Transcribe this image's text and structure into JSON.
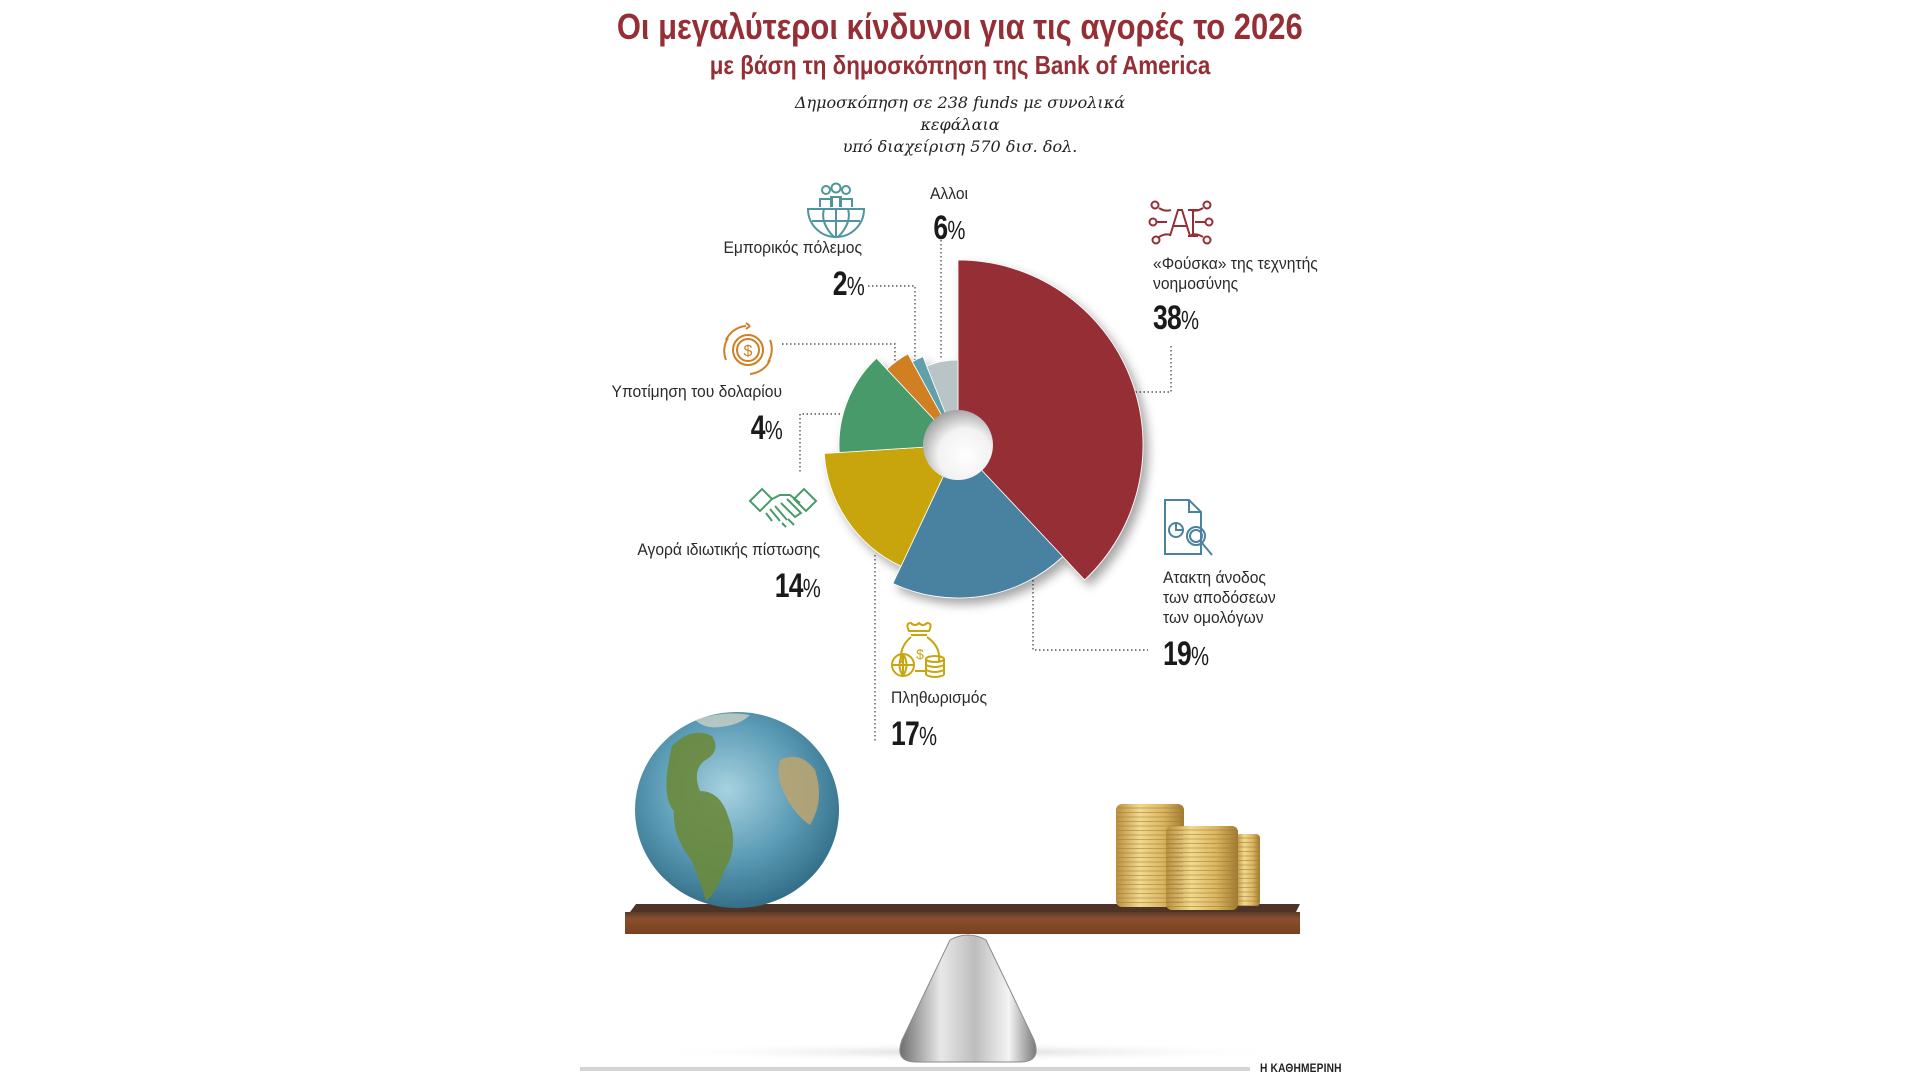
{
  "header": {
    "title": "Οι μεγαλύτεροι κίνδυνοι για τις αγορές το 2026",
    "subtitle": "με βάση τη δημοσκόπηση της Bank of America",
    "note_line1": "Δημοσκόπηση σε 238 funds με συνολικά κεφάλαια",
    "note_line2": "υπό διαχείριση  570 δισ. δολ."
  },
  "labels": {
    "others": {
      "name": "Αλλοι",
      "value": "6",
      "icon": "none"
    },
    "trade_war": {
      "name": "Εμπορικός πόλεμος",
      "value": "2",
      "icon": "globe-people-icon"
    },
    "ai_bubble": {
      "line1": "«Φούσκα» της τεχνητής",
      "line2": "νοημοσύνης",
      "value": "38",
      "icon": "ai-chip-icon"
    },
    "dollar": {
      "name": "Υποτίμηση του δολαρίου",
      "value": "4",
      "icon": "dollar-cycle-icon"
    },
    "private_credit": {
      "name": "Αγορά ιδιωτικής πίστωσης",
      "value": "14",
      "icon": "handshake-icon"
    },
    "bond_yields": {
      "line1": "Ατακτη άνοδος",
      "line2": "των αποδόσεων",
      "line3": "των ομολόγων",
      "value": "19",
      "icon": "document-search-icon"
    },
    "inflation": {
      "name": "Πληθωρισμός",
      "value": "17",
      "icon": "money-bag-icon"
    },
    "percent_sign": "%"
  },
  "footer": {
    "brand": "Η ΚΑΘΗΜΕΡΙΝΗ"
  },
  "chart_data": {
    "type": "pie",
    "variant": "polar-area donut (variable radius slices)",
    "title": "Οι μεγαλύτεροι κίνδυνοι για τις αγορές το 2026",
    "subtitle": "με βάση τη δημοσκόπηση της Bank of America",
    "categories": [
      "«Φούσκα» της τεχνητής νοημοσύνης",
      "Ατακτη άνοδος των αποδόσεων των ομολόγων",
      "Πληθωρισμός",
      "Αγορά ιδιωτικής πίστωσης",
      "Υποτίμηση του δολαρίου",
      "Εμπορικός πόλεμος",
      "Αλλοι"
    ],
    "values": [
      38,
      19,
      17,
      14,
      4,
      2,
      6
    ],
    "unit": "%",
    "colors": [
      "#962e36",
      "#4a82a0",
      "#c9a50e",
      "#4a9a6a",
      "#d07f22",
      "#5fa0aa",
      "#b8c4c6"
    ],
    "radii": [
      185,
      153,
      134,
      119,
      104,
      95,
      85
    ],
    "start_angle_deg": 0,
    "direction": "clockwise",
    "legend": "none (direct labels with leader lines)"
  }
}
